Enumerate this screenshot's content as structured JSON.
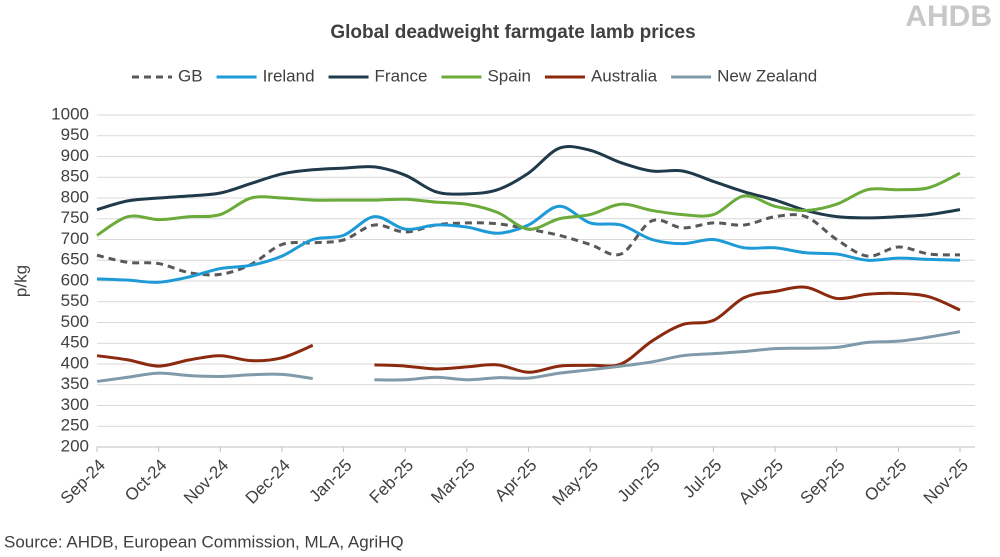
{
  "chart_data": {
    "type": "line",
    "title": "Global deadweight farmgate lamb prices",
    "logo": "AHDB",
    "y_label": "p/kg",
    "source": "Source: AHDB, European Commission, MLA, AgriHQ",
    "categories": [
      "Sep-24",
      null,
      "Oct-24",
      null,
      "Nov-24",
      null,
      "Dec-24",
      null,
      "Jan-25",
      null,
      "Feb-25",
      null,
      "Mar-25",
      null,
      "Apr-25",
      null,
      "May-25",
      null,
      "Jun-25",
      null,
      "Jul-25",
      null,
      "Aug-25",
      null,
      "Sep-25",
      null,
      "Oct-25",
      null,
      "Nov-25"
    ],
    "ylim": [
      200,
      1000
    ],
    "yticks": [
      200,
      250,
      300,
      350,
      400,
      450,
      500,
      550,
      600,
      650,
      700,
      750,
      800,
      850,
      900,
      950,
      1000
    ],
    "grid": true,
    "legend": "top",
    "series": [
      {
        "name": "GB",
        "color": "#595959",
        "dashed": true,
        "values": [
          662,
          645,
          642,
          620,
          616,
          640,
          688,
          692,
          699,
          735,
          718,
          735,
          740,
          738,
          725,
          710,
          688,
          665,
          745,
          728,
          740,
          735,
          755,
          755,
          700,
          660,
          682,
          665,
          663
        ]
      },
      {
        "name": "Ireland",
        "color": "#1e9bd7",
        "values": [
          605,
          602,
          597,
          610,
          630,
          638,
          660,
          700,
          710,
          755,
          725,
          735,
          730,
          715,
          735,
          780,
          740,
          735,
          700,
          690,
          700,
          680,
          680,
          668,
          665,
          650,
          655,
          652,
          650
        ]
      },
      {
        "name": "France",
        "color": "#1f3a4a",
        "values": [
          772,
          793,
          800,
          805,
          812,
          835,
          858,
          868,
          872,
          875,
          855,
          815,
          810,
          820,
          860,
          920,
          915,
          885,
          865,
          865,
          840,
          815,
          795,
          770,
          755,
          752,
          755,
          760,
          772
        ]
      },
      {
        "name": "Spain",
        "color": "#6aab3a",
        "values": [
          710,
          755,
          748,
          755,
          760,
          800,
          800,
          795,
          795,
          795,
          797,
          790,
          785,
          765,
          725,
          750,
          760,
          785,
          770,
          760,
          760,
          805,
          780,
          770,
          785,
          820,
          820,
          825,
          860
        ]
      },
      {
        "name": "Australia",
        "color": "#8b2a0e",
        "values": [
          420,
          410,
          395,
          410,
          420,
          408,
          415,
          445,
          null,
          398,
          395,
          388,
          393,
          398,
          380,
          395,
          397,
          400,
          455,
          495,
          505,
          560,
          575,
          585,
          558,
          568,
          570,
          562,
          530
        ]
      },
      {
        "name": "New Zealand",
        "color": "#7f9aa8",
        "values": [
          358,
          368,
          378,
          372,
          370,
          374,
          375,
          365,
          null,
          362,
          362,
          368,
          362,
          367,
          366,
          378,
          386,
          395,
          405,
          420,
          425,
          430,
          437,
          438,
          440,
          452,
          455,
          465,
          478
        ]
      }
    ]
  }
}
